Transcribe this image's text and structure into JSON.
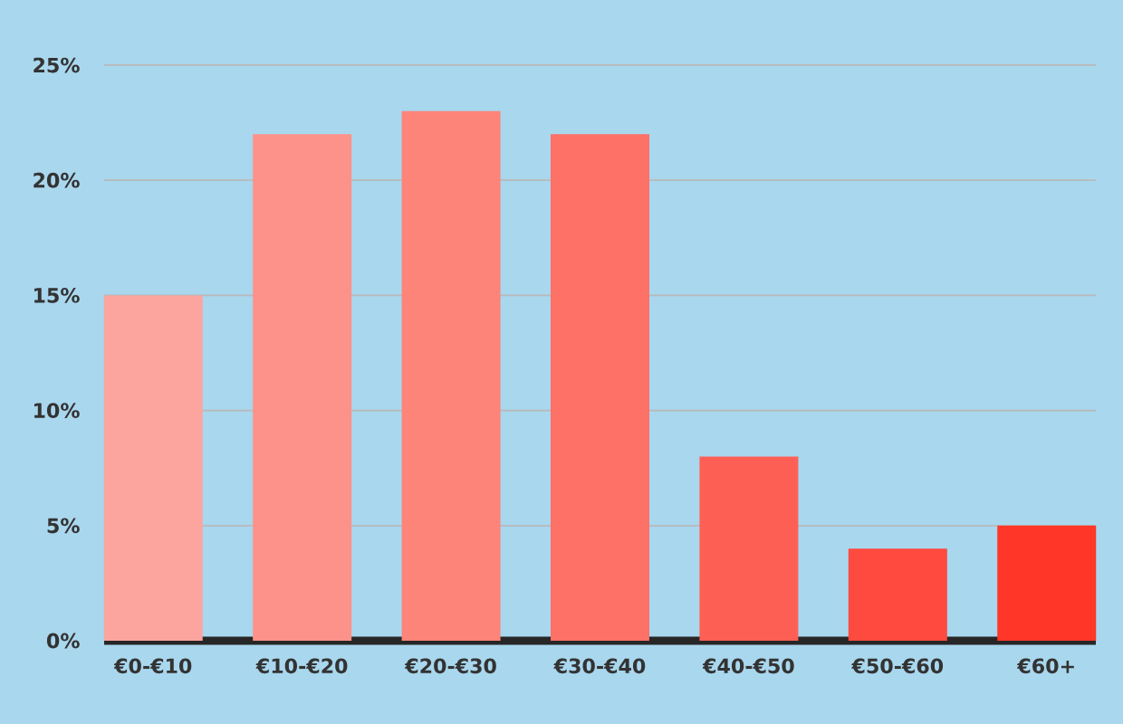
{
  "chart_data": {
    "type": "bar",
    "categories": [
      "€0-€10",
      "€10-€20",
      "€20-€30",
      "€30-€40",
      "€40-€50",
      "€50-€60",
      "€60+"
    ],
    "values": [
      15,
      22,
      23,
      22,
      8,
      4,
      5
    ],
    "colors": [
      "#fca59f",
      "#fd928a",
      "#fd8478",
      "#fe7166",
      "#fe5f55",
      "#fe4a3f",
      "#ff3628"
    ],
    "ylim": [
      0,
      25
    ],
    "yticks": [
      {
        "value": 0,
        "label": "0%"
      },
      {
        "value": 5,
        "label": "5%"
      },
      {
        "value": 10,
        "label": "10%"
      },
      {
        "value": 15,
        "label": "15%"
      },
      {
        "value": 20,
        "label": "20%"
      },
      {
        "value": 25,
        "label": "25%"
      }
    ],
    "grid": "y"
  }
}
